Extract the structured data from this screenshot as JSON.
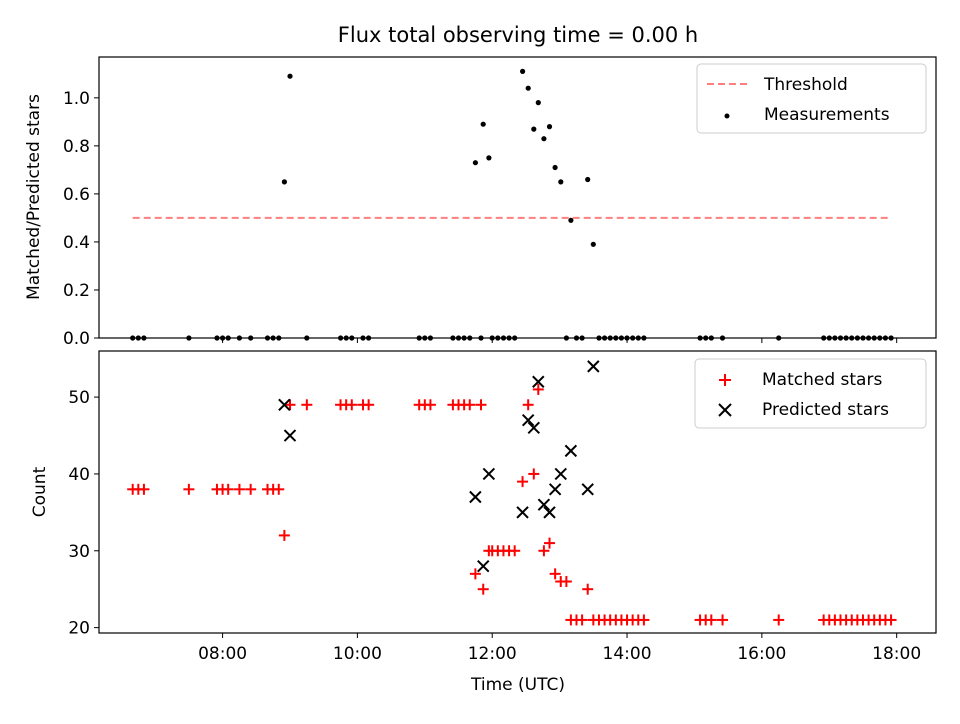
{
  "chart_data": [
    {
      "type": "line",
      "title": "Flux total observing time = 0.00 h",
      "xlabel": "",
      "ylabel": "Matched/Predicted stars",
      "ylim": [
        0,
        1.17
      ],
      "yticks": [
        0.0,
        0.2,
        0.4,
        0.6,
        0.8,
        1.0
      ],
      "ytick_labels": [
        "0.0",
        "0.2",
        "0.4",
        "0.6",
        "0.8",
        "1.0"
      ],
      "grid": false,
      "legend_position": "top-right",
      "legend": [
        "Threshold",
        "Measurements"
      ],
      "series": [
        {
          "name": "Threshold",
          "style": "dashed-line",
          "color": "#ff7f7f",
          "points": [
            [
              "06:40",
              0.5
            ],
            [
              "17:55",
              0.5
            ]
          ]
        },
        {
          "name": "Measurements",
          "style": "scatter",
          "color": "#000000",
          "points": [
            [
              "06:40",
              0
            ],
            [
              "06:45",
              0
            ],
            [
              "06:50",
              0
            ],
            [
              "07:30",
              0
            ],
            [
              "07:55",
              0
            ],
            [
              "08:00",
              0
            ],
            [
              "08:05",
              0
            ],
            [
              "08:15",
              0
            ],
            [
              "08:25",
              0
            ],
            [
              "08:40",
              0
            ],
            [
              "08:45",
              0
            ],
            [
              "08:50",
              0
            ],
            [
              "08:55",
              0.65
            ],
            [
              "09:00",
              1.09
            ],
            [
              "09:15",
              0
            ],
            [
              "09:45",
              0
            ],
            [
              "09:50",
              0
            ],
            [
              "09:55",
              0
            ],
            [
              "10:05",
              0
            ],
            [
              "10:10",
              0
            ],
            [
              "10:55",
              0
            ],
            [
              "11:00",
              0
            ],
            [
              "11:05",
              0
            ],
            [
              "11:25",
              0
            ],
            [
              "11:30",
              0
            ],
            [
              "11:35",
              0
            ],
            [
              "11:40",
              0
            ],
            [
              "11:45",
              0.73
            ],
            [
              "11:50",
              0
            ],
            [
              "11:52",
              0.89
            ],
            [
              "11:57",
              0.75
            ],
            [
              "12:00",
              0
            ],
            [
              "12:05",
              0
            ],
            [
              "12:10",
              0
            ],
            [
              "12:15",
              0
            ],
            [
              "12:20",
              0
            ],
            [
              "12:27",
              1.11
            ],
            [
              "12:32",
              1.04
            ],
            [
              "12:37",
              0.87
            ],
            [
              "12:41",
              0.98
            ],
            [
              "12:46",
              0.83
            ],
            [
              "12:51",
              0.88
            ],
            [
              "12:56",
              0.71
            ],
            [
              "13:01",
              0.65
            ],
            [
              "13:06",
              0
            ],
            [
              "13:10",
              0.49
            ],
            [
              "13:15",
              0
            ],
            [
              "13:20",
              0
            ],
            [
              "13:25",
              0.66
            ],
            [
              "13:30",
              0.39
            ],
            [
              "13:35",
              0
            ],
            [
              "13:40",
              0
            ],
            [
              "13:45",
              0
            ],
            [
              "13:50",
              0
            ],
            [
              "13:55",
              0
            ],
            [
              "14:00",
              0
            ],
            [
              "14:05",
              0
            ],
            [
              "14:10",
              0
            ],
            [
              "14:15",
              0
            ],
            [
              "15:05",
              0
            ],
            [
              "15:10",
              0
            ],
            [
              "15:15",
              0
            ],
            [
              "15:25",
              0
            ],
            [
              "16:15",
              0
            ],
            [
              "16:55",
              0
            ],
            [
              "17:00",
              0
            ],
            [
              "17:05",
              0
            ],
            [
              "17:10",
              0
            ],
            [
              "17:15",
              0
            ],
            [
              "17:20",
              0
            ],
            [
              "17:25",
              0
            ],
            [
              "17:30",
              0
            ],
            [
              "17:35",
              0
            ],
            [
              "17:40",
              0
            ],
            [
              "17:45",
              0
            ],
            [
              "17:50",
              0
            ],
            [
              "17:55",
              0
            ]
          ]
        }
      ]
    },
    {
      "type": "scatter",
      "title": "",
      "xlabel": "Time (UTC)",
      "ylabel": "Count",
      "xlim": [
        "06:10",
        "18:35"
      ],
      "xticks": [
        "08:00",
        "10:00",
        "12:00",
        "14:00",
        "16:00",
        "18:00"
      ],
      "xtick_labels": [
        "08:00",
        "10:00",
        "12:00",
        "14:00",
        "16:00",
        "18:00"
      ],
      "ylim": [
        19.3,
        56
      ],
      "yticks": [
        20,
        30,
        40,
        50
      ],
      "ytick_labels": [
        "20",
        "30",
        "40",
        "50"
      ],
      "grid": false,
      "legend_position": "top-right",
      "legend": [
        "Matched stars",
        "Predicted stars"
      ],
      "series": [
        {
          "name": "Matched stars",
          "marker": "+",
          "color": "#ff0000",
          "points": [
            [
              "06:40",
              38
            ],
            [
              "06:45",
              38
            ],
            [
              "06:50",
              38
            ],
            [
              "07:30",
              38
            ],
            [
              "07:55",
              38
            ],
            [
              "08:00",
              38
            ],
            [
              "08:05",
              38
            ],
            [
              "08:15",
              38
            ],
            [
              "08:25",
              38
            ],
            [
              "08:40",
              38
            ],
            [
              "08:45",
              38
            ],
            [
              "08:50",
              38
            ],
            [
              "08:55",
              32
            ],
            [
              "09:00",
              49
            ],
            [
              "09:15",
              49
            ],
            [
              "09:45",
              49
            ],
            [
              "09:50",
              49
            ],
            [
              "09:55",
              49
            ],
            [
              "10:05",
              49
            ],
            [
              "10:10",
              49
            ],
            [
              "10:55",
              49
            ],
            [
              "11:00",
              49
            ],
            [
              "11:05",
              49
            ],
            [
              "11:25",
              49
            ],
            [
              "11:30",
              49
            ],
            [
              "11:35",
              49
            ],
            [
              "11:40",
              49
            ],
            [
              "11:45",
              27
            ],
            [
              "11:50",
              49
            ],
            [
              "11:52",
              25
            ],
            [
              "11:57",
              30
            ],
            [
              "12:00",
              30
            ],
            [
              "12:05",
              30
            ],
            [
              "12:10",
              30
            ],
            [
              "12:15",
              30
            ],
            [
              "12:20",
              30
            ],
            [
              "12:27",
              39
            ],
            [
              "12:32",
              49
            ],
            [
              "12:37",
              40
            ],
            [
              "12:41",
              51
            ],
            [
              "12:46",
              30
            ],
            [
              "12:51",
              31
            ],
            [
              "12:56",
              27
            ],
            [
              "13:01",
              26
            ],
            [
              "13:06",
              26
            ],
            [
              "13:10",
              21
            ],
            [
              "13:15",
              21
            ],
            [
              "13:20",
              21
            ],
            [
              "13:25",
              25
            ],
            [
              "13:30",
              21
            ],
            [
              "13:35",
              21
            ],
            [
              "13:40",
              21
            ],
            [
              "13:45",
              21
            ],
            [
              "13:50",
              21
            ],
            [
              "13:55",
              21
            ],
            [
              "14:00",
              21
            ],
            [
              "14:05",
              21
            ],
            [
              "14:10",
              21
            ],
            [
              "14:15",
              21
            ],
            [
              "15:05",
              21
            ],
            [
              "15:10",
              21
            ],
            [
              "15:15",
              21
            ],
            [
              "15:25",
              21
            ],
            [
              "16:15",
              21
            ],
            [
              "16:55",
              21
            ],
            [
              "17:00",
              21
            ],
            [
              "17:05",
              21
            ],
            [
              "17:10",
              21
            ],
            [
              "17:15",
              21
            ],
            [
              "17:20",
              21
            ],
            [
              "17:25",
              21
            ],
            [
              "17:30",
              21
            ],
            [
              "17:35",
              21
            ],
            [
              "17:40",
              21
            ],
            [
              "17:45",
              21
            ],
            [
              "17:50",
              21
            ],
            [
              "17:55",
              21
            ]
          ]
        },
        {
          "name": "Predicted stars",
          "marker": "x",
          "color": "#000000",
          "points": [
            [
              "08:55",
              49
            ],
            [
              "09:00",
              45
            ],
            [
              "11:45",
              37
            ],
            [
              "11:52",
              28
            ],
            [
              "11:57",
              40
            ],
            [
              "12:27",
              35
            ],
            [
              "12:32",
              47
            ],
            [
              "12:37",
              46
            ],
            [
              "12:41",
              52
            ],
            [
              "12:46",
              36
            ],
            [
              "12:51",
              35
            ],
            [
              "12:56",
              38
            ],
            [
              "13:01",
              40
            ],
            [
              "13:10",
              43
            ],
            [
              "13:25",
              38
            ],
            [
              "13:30",
              54
            ]
          ]
        }
      ]
    }
  ]
}
